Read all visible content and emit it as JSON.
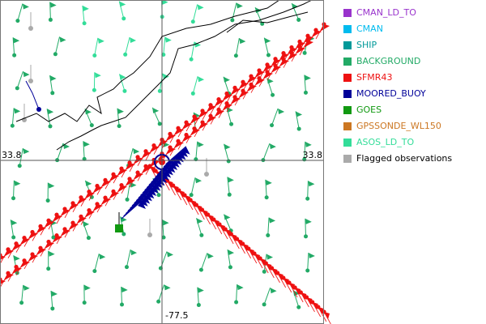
{
  "map": {
    "lat_label_left": "33.8",
    "lat_label_right": "33.8",
    "lon_label": "-77.5",
    "legend": [
      {
        "label": "CMAN_LD_TO",
        "color": "#9933cc"
      },
      {
        "label": "CMAN",
        "color": "#00bbee"
      },
      {
        "label": "SHIP",
        "color": "#009999"
      },
      {
        "label": "BACKGROUND",
        "color": "#22aa66"
      },
      {
        "label": "SFMR43",
        "color": "#ee1111"
      },
      {
        "label": "MOORED_BUOY",
        "color": "#000099"
      },
      {
        "label": "GOES",
        "color": "#119911"
      },
      {
        "label": "GPSSONDE_WL150",
        "color": "#cc7722"
      },
      {
        "label": "ASOS_LD_TO",
        "color": "#33dd99"
      },
      {
        "label": "Flagged observations",
        "color": "#aaaaaa",
        "label_color": "#000000"
      }
    ]
  }
}
